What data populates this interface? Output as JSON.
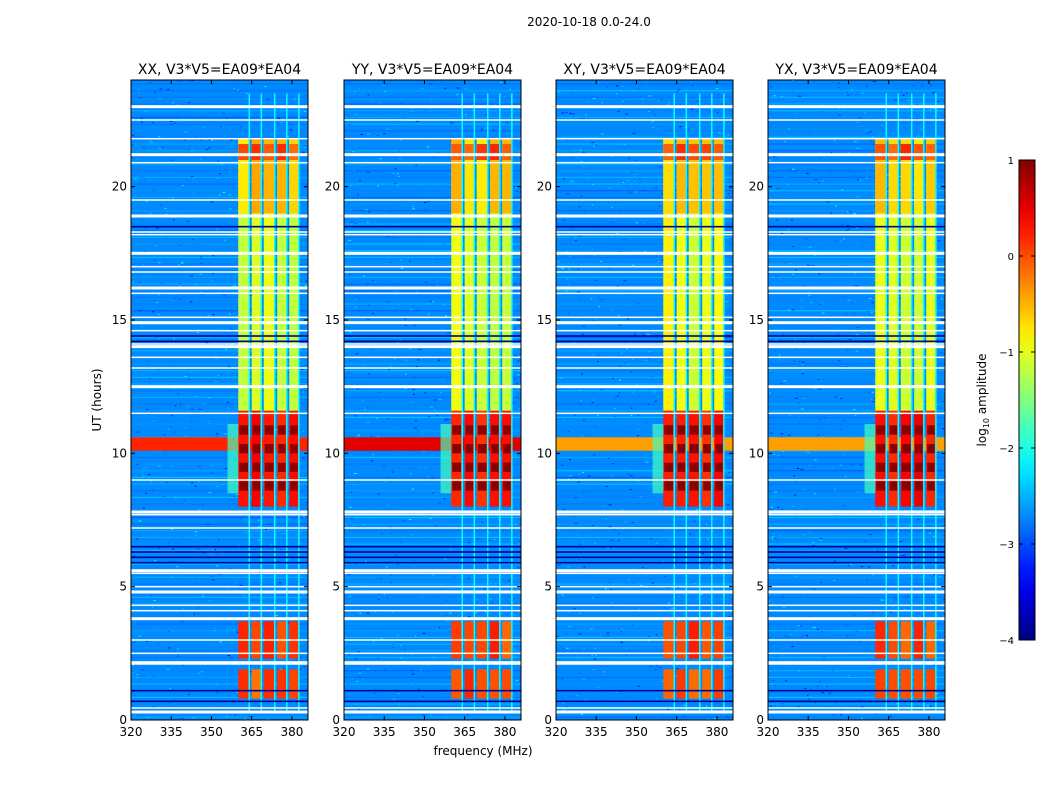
{
  "chart_data": {
    "type": "heatmap",
    "suptitle": "2020-10-18 0.0-24.0",
    "xlabel": "frequency (MHz)",
    "ylabel": "UT (hours)",
    "xlim": [
      320,
      386
    ],
    "ylim": [
      0,
      24
    ],
    "xticks": [
      320,
      335,
      350,
      365,
      380
    ],
    "xtick_labels": [
      "320",
      "335",
      "350",
      "365",
      "380"
    ],
    "yticks": [
      0,
      5,
      10,
      15,
      20
    ],
    "ytick_labels": [
      "0",
      "5",
      "10",
      "15",
      "20"
    ],
    "panels": [
      {
        "title": "XX, V3*V5=EA09*EA04",
        "row_band_strength": 0.85
      },
      {
        "title": "YY, V3*V5=EA09*EA04",
        "row_band_strength": 1.0
      },
      {
        "title": "XY, V3*V5=EA09*EA04",
        "row_band_strength": 0.55
      },
      {
        "title": "YX, V3*V5=EA09*EA04",
        "row_band_strength": 0.55
      }
    ],
    "colorbar": {
      "label": "log",
      "label_sub": "10",
      "label_rest": " amplitude",
      "range": [
        -4,
        1
      ],
      "ticks": [
        1,
        0,
        -1,
        -2,
        -3,
        -4
      ],
      "tick_labels": [
        "1",
        "0",
        "−1",
        "−2",
        "−3",
        "−4"
      ],
      "colormap": "jet"
    },
    "background_level": -2.7,
    "rfi_channels_mhz": [
      {
        "from": 360.0,
        "to": 364.0
      },
      {
        "from": 365.0,
        "to": 368.5
      },
      {
        "from": 369.5,
        "to": 373.5
      },
      {
        "from": 374.5,
        "to": 378.0
      },
      {
        "from": 379.0,
        "to": 382.5
      }
    ],
    "rfi_time_blocks_hours": [
      {
        "from": 0.8,
        "to": 1.9,
        "level": 0.0
      },
      {
        "from": 2.3,
        "to": 3.7,
        "level": 0.05
      },
      {
        "from": 8.0,
        "to": 11.6,
        "level": 0.3
      },
      {
        "from": 11.6,
        "to": 21.8,
        "level": -1.0
      },
      {
        "from": 19.0,
        "to": 21.8,
        "level": -0.6
      },
      {
        "from": 21.0,
        "to": 21.6,
        "level": 0.0
      }
    ],
    "full_band_rfi_hours": {
      "from": 10.1,
      "to": 10.6,
      "level": 0.5
    },
    "flagged_rows_hours": [
      0.3,
      0.45,
      2.1,
      2.15,
      2.5,
      3.0,
      3.8,
      4.1,
      4.3,
      4.8,
      5.0,
      5.5,
      5.6,
      7.2,
      7.7,
      7.8,
      9.0,
      11.5,
      12.5,
      13.2,
      13.6,
      14.0,
      14.1,
      14.6,
      14.9,
      15.1,
      16.0,
      16.2,
      16.8,
      17.0,
      17.5,
      18.2,
      18.3,
      18.9,
      19.5,
      20.9,
      21.2,
      21.8,
      22.5,
      23.0
    ]
  }
}
